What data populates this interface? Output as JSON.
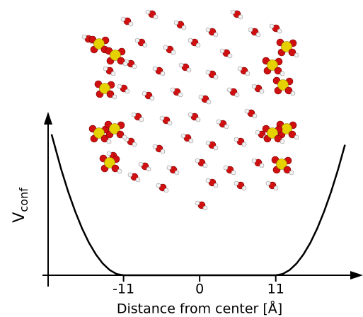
{
  "chart_data": {
    "type": "line",
    "x_label": "Distance from center [Å]",
    "y_label": "V",
    "y_label_subscript": "conf",
    "x": [
      -21.4,
      -20,
      -19,
      -18,
      -17,
      -16,
      -15,
      -14,
      -13,
      -12,
      -11,
      0,
      11,
      12,
      13,
      14,
      15,
      16,
      17,
      18,
      19,
      20,
      21
    ],
    "values": [
      1.0,
      0.75,
      0.593,
      0.454,
      0.333,
      0.231,
      0.148,
      0.083,
      0.037,
      0.009,
      0,
      0,
      0,
      0.009,
      0.037,
      0.083,
      0.148,
      0.231,
      0.333,
      0.454,
      0.593,
      0.75,
      0.926
    ],
    "color": "#000000",
    "xlim": [
      -21.9,
      23.3
    ],
    "ylim": [
      0,
      1.15
    ],
    "xticks": [
      -11,
      0,
      11
    ]
  }
}
